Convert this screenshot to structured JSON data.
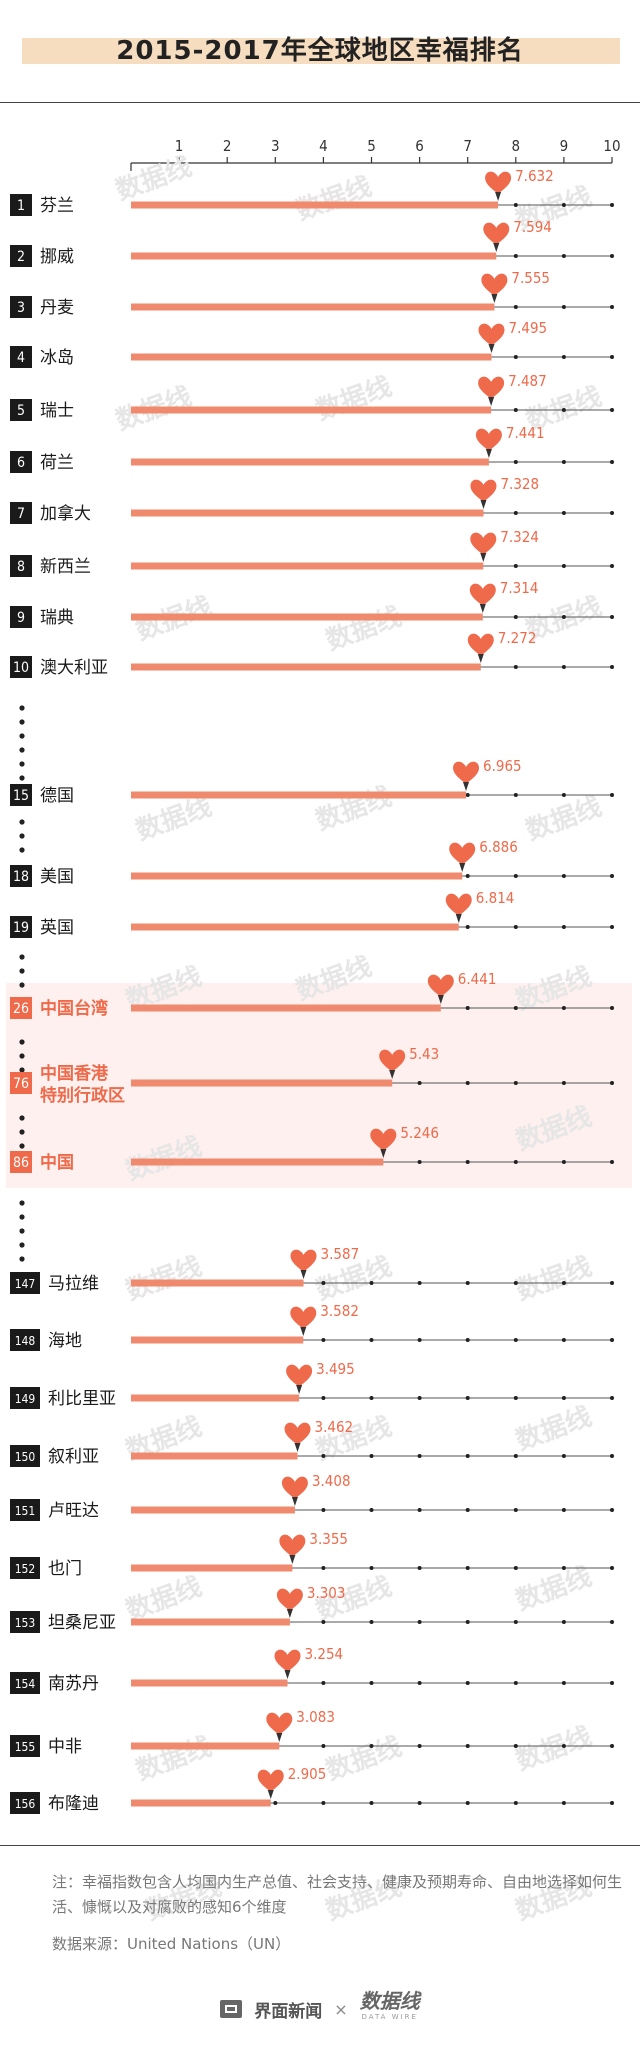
{
  "page": {
    "title": "2015-2017年全球地区幸福排名",
    "note": "注：幸福指数包含人均国内生产总值、社会支持、健康及预期寿命、自由地选择如何生活、慷慨以及对腐败的感知6个维度",
    "source": "数据来源：United Nations（UN）",
    "footer_brand": "界面新闻",
    "footer_times": "×",
    "footer_partner": "数据线",
    "footer_partner_sub": "DATA WIRE",
    "watermark": "数据线"
  },
  "colors": {
    "accent": "#ef6a4a",
    "bar": "#f08a6e",
    "highlight_bg": "#fdf0ee",
    "title_band": "#f6ddc0"
  },
  "chart_data": {
    "type": "bar",
    "orientation": "horizontal",
    "title": "2015-2017年全球地区幸福排名",
    "xlim": [
      0,
      10
    ],
    "xticks": [
      "1",
      "2",
      "3",
      "4",
      "5",
      "6",
      "7",
      "8",
      "9",
      "10"
    ],
    "grid": false,
    "rows": [
      {
        "rank": "1",
        "name": "芬兰",
        "value": 7.632
      },
      {
        "rank": "2",
        "name": "挪威",
        "value": 7.594
      },
      {
        "rank": "3",
        "name": "丹麦",
        "value": 7.555
      },
      {
        "rank": "4",
        "name": "冰岛",
        "value": 7.495
      },
      {
        "rank": "5",
        "name": "瑞士",
        "value": 7.487
      },
      {
        "rank": "6",
        "name": "荷兰",
        "value": 7.441
      },
      {
        "rank": "7",
        "name": "加拿大",
        "value": 7.328
      },
      {
        "rank": "8",
        "name": "新西兰",
        "value": 7.324
      },
      {
        "rank": "9",
        "name": "瑞典",
        "value": 7.314
      },
      {
        "rank": "10",
        "name": "澳大利亚",
        "value": 7.272
      },
      {
        "rank": "15",
        "name": "德国",
        "value": 6.965
      },
      {
        "rank": "18",
        "name": "美国",
        "value": 6.886
      },
      {
        "rank": "19",
        "name": "英国",
        "value": 6.814
      },
      {
        "rank": "26",
        "name": "中国台湾",
        "value": 6.441,
        "highlight": true
      },
      {
        "rank": "76",
        "name": "中国香港特别行政区",
        "value": 5.43,
        "highlight": true
      },
      {
        "rank": "86",
        "name": "中国",
        "value": 5.246,
        "highlight": true
      },
      {
        "rank": "147",
        "name": "马拉维",
        "value": 3.587
      },
      {
        "rank": "148",
        "name": "海地",
        "value": 3.582
      },
      {
        "rank": "149",
        "name": "利比里亚",
        "value": 3.495
      },
      {
        "rank": "150",
        "name": "叙利亚",
        "value": 3.462
      },
      {
        "rank": "151",
        "name": "卢旺达",
        "value": 3.408
      },
      {
        "rank": "152",
        "name": "也门",
        "value": 3.355
      },
      {
        "rank": "153",
        "name": "坦桑尼亚",
        "value": 3.303
      },
      {
        "rank": "154",
        "name": "南苏丹",
        "value": 3.254
      },
      {
        "rank": "155",
        "name": "中非",
        "value": 3.083
      },
      {
        "rank": "156",
        "name": "布隆迪",
        "value": 2.905
      }
    ]
  }
}
